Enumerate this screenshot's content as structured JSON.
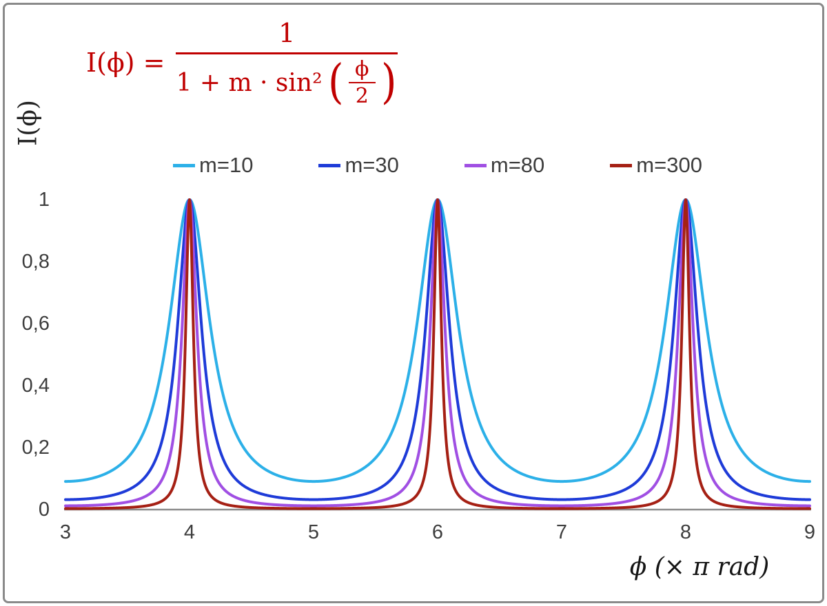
{
  "formula": {
    "lhs": "I(ϕ) =",
    "numerator": "1",
    "den_prefix": "1 + m · sin²",
    "paren_open": "(",
    "paren_close": ")",
    "inner_num": "ϕ",
    "inner_den": "2",
    "color": "#C00000"
  },
  "chart_data": {
    "type": "line",
    "title": "",
    "xlabel": "ϕ  (× π rad)",
    "ylabel": "I(ϕ)",
    "xlim": [
      3,
      9
    ],
    "ylim": [
      0,
      1
    ],
    "x_ticks": [
      "3",
      "4",
      "5",
      "6",
      "7",
      "8",
      "9"
    ],
    "y_ticks": [
      "0",
      "0,2",
      "0,4",
      "0,6",
      "0,8",
      "1"
    ],
    "grid": false,
    "legend_position": "top-center",
    "function": "I(x) = 1 / (1 + m * sin^2(x*pi/2)), x in units of pi rad",
    "peaks_at_x": [
      4,
      6,
      8
    ],
    "peak_value": 1,
    "series": [
      {
        "name": "m=10",
        "m": 10,
        "color": "#2CB0E8",
        "min_value": 0.0909
      },
      {
        "name": "m=30",
        "m": 30,
        "color": "#1E3BD8",
        "min_value": 0.0323
      },
      {
        "name": "m=80",
        "m": 80,
        "color": "#A04FE3",
        "min_value": 0.0123
      },
      {
        "name": "m=300",
        "m": 300,
        "color": "#A52014",
        "min_value": 0.0033
      }
    ]
  }
}
